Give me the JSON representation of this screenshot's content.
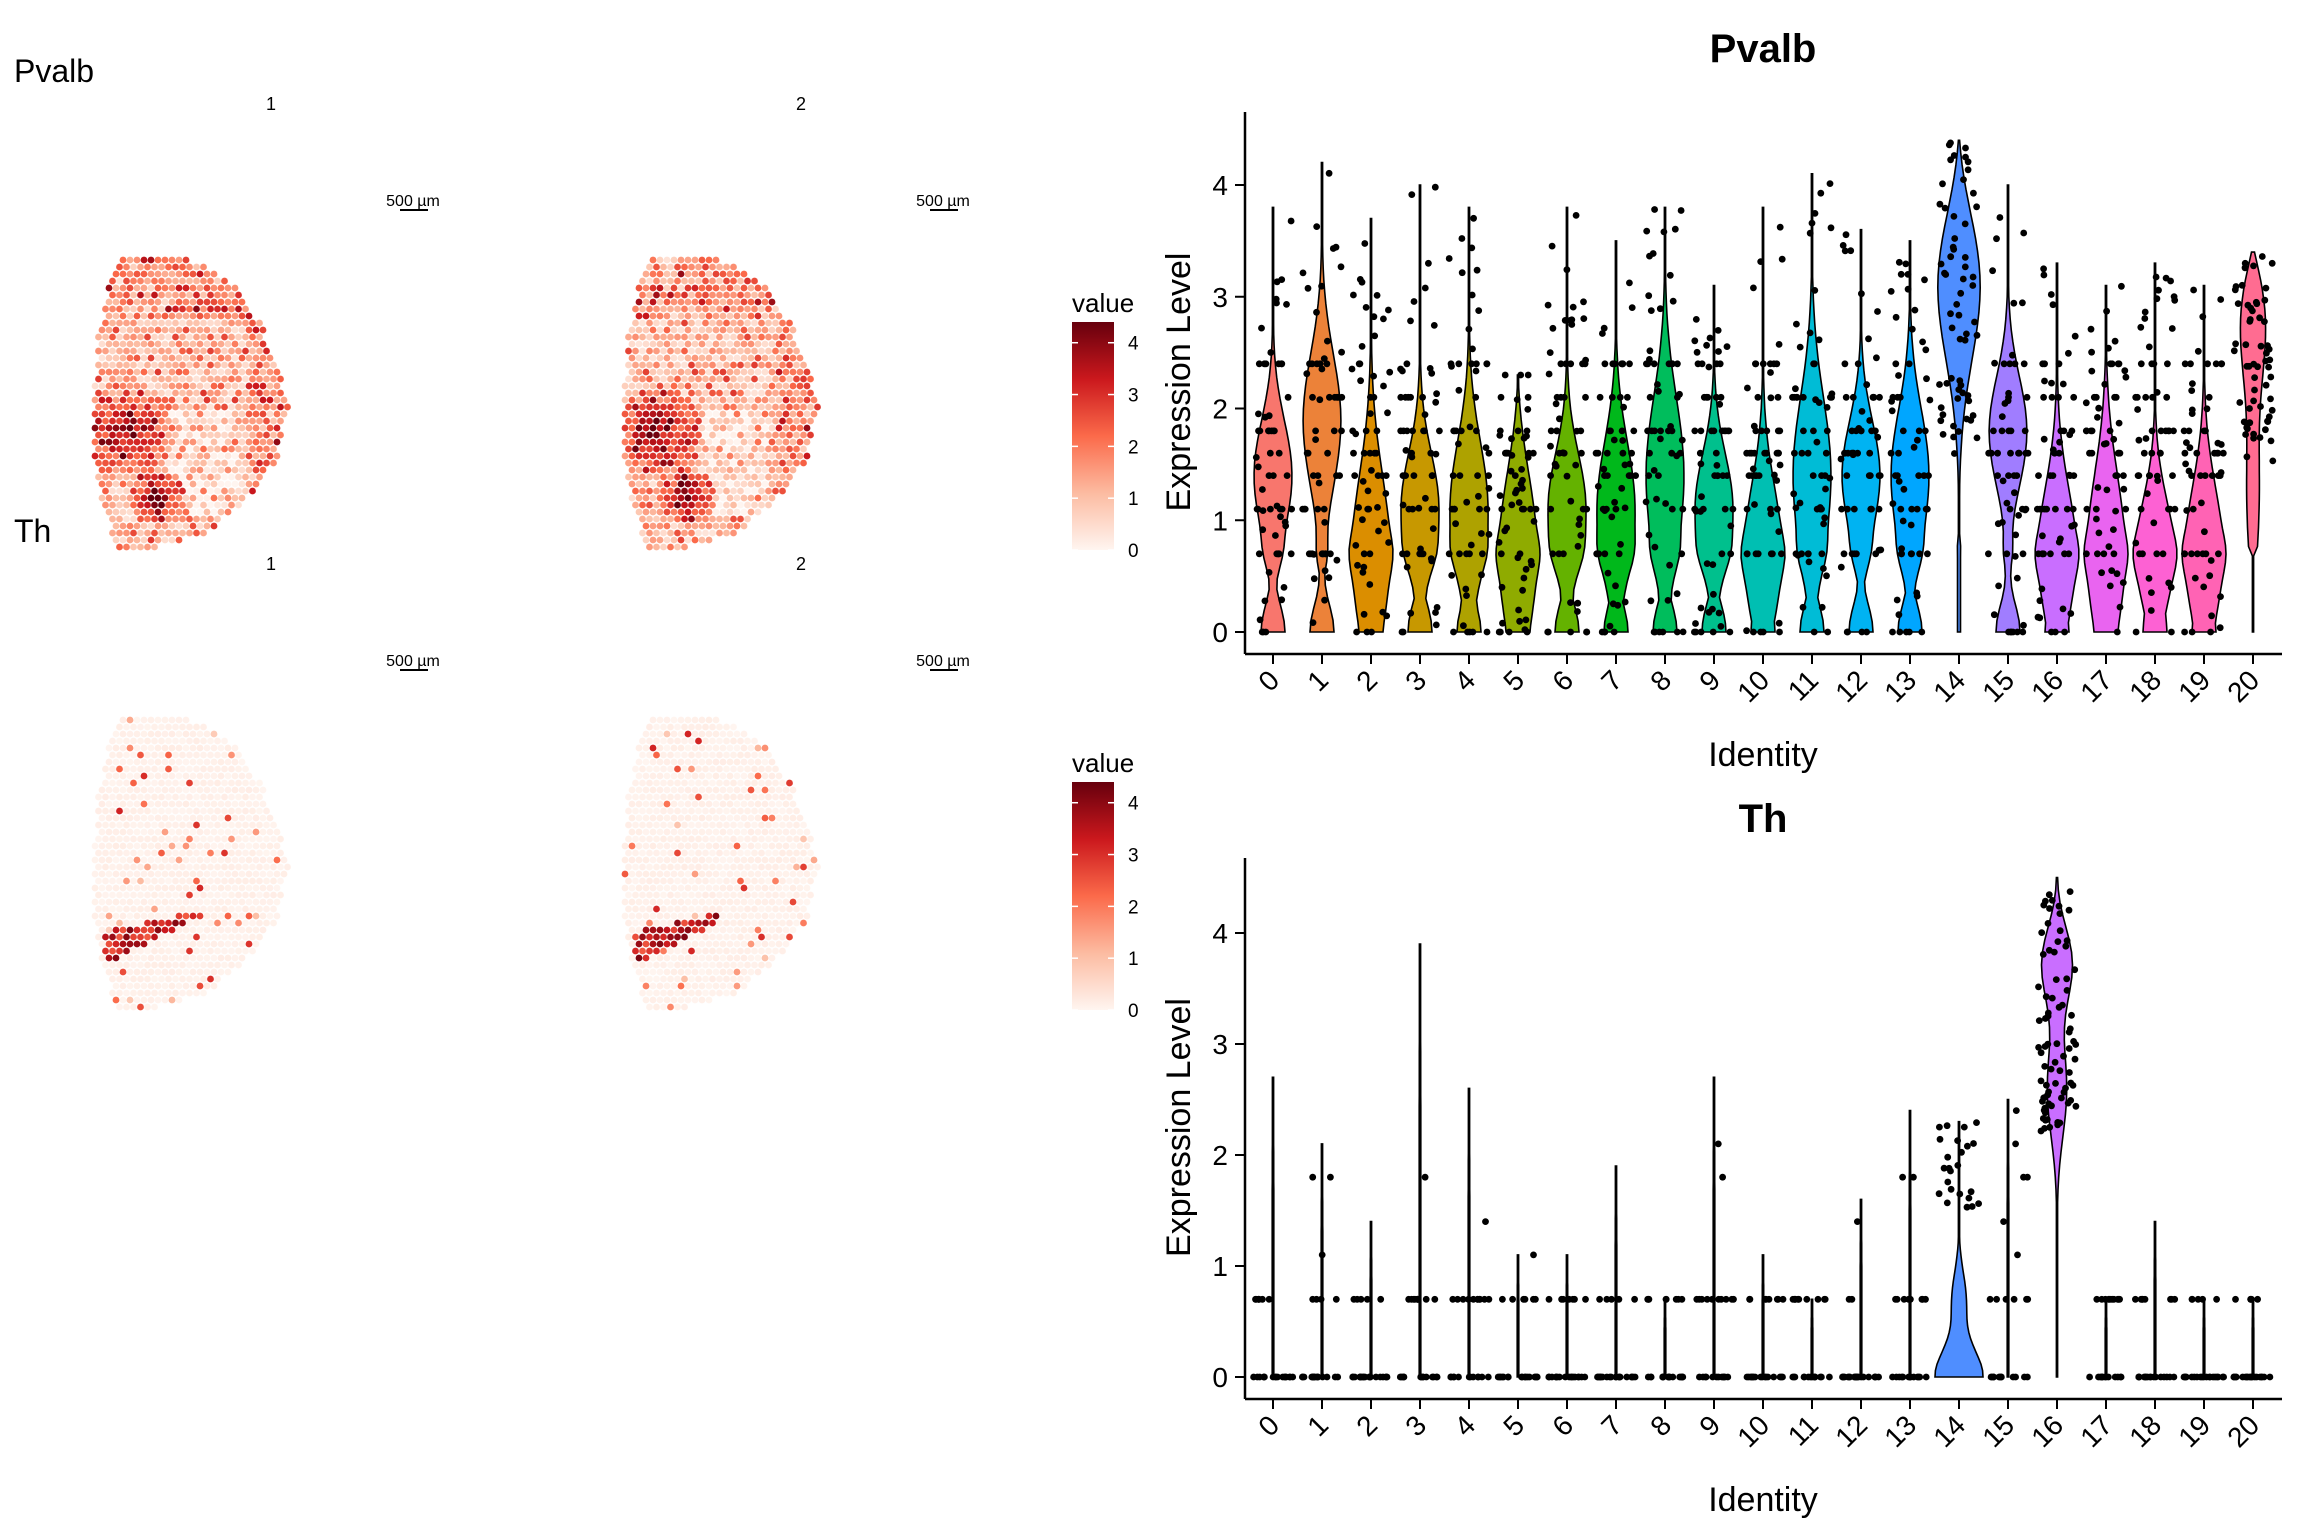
{
  "chart_data": {
    "type": "violin+spatial",
    "panels": [
      {
        "gene": "Pvalb",
        "spatial": {
          "samples": [
            "1",
            "2"
          ],
          "scale_bar_label": "500 µm",
          "legend_title": "value",
          "legend_ticks": [
            "0",
            "1",
            "2",
            "3",
            "4"
          ],
          "color_low": "#fff5f0",
          "color_high": "#67000d",
          "value_range": [
            0,
            4.4
          ]
        },
        "violin": {
          "title": "Pvalb",
          "xlabel": "Identity",
          "ylabel": "Expression Level",
          "ylim": [
            0,
            4.6
          ],
          "yticks": [
            "0",
            "1",
            "2",
            "3",
            "4"
          ],
          "categories": [
            "0",
            "1",
            "2",
            "3",
            "4",
            "5",
            "6",
            "7",
            "8",
            "9",
            "10",
            "11",
            "12",
            "13",
            "14",
            "15",
            "16",
            "17",
            "18",
            "19",
            "20"
          ],
          "max": [
            3.8,
            4.2,
            3.7,
            4.0,
            3.8,
            2.3,
            3.8,
            3.5,
            3.8,
            3.1,
            3.8,
            4.1,
            3.6,
            3.5,
            4.4,
            4.0,
            3.3,
            3.1,
            3.3,
            3.1,
            3.4
          ],
          "median": [
            1.4,
            1.9,
            0.7,
            1.1,
            1.1,
            0.7,
            1.1,
            1.1,
            1.4,
            1.1,
            0.7,
            1.4,
            1.4,
            1.4,
            3.2,
            1.8,
            0.7,
            0.7,
            0.7,
            0.7,
            2.3
          ]
        }
      },
      {
        "gene": "Th",
        "spatial": {
          "samples": [
            "1",
            "2"
          ],
          "scale_bar_label": "500 µm",
          "legend_title": "value",
          "legend_ticks": [
            "0",
            "1",
            "2",
            "3",
            "4"
          ],
          "color_low": "#fff5f0",
          "color_high": "#67000d",
          "value_range": [
            0,
            4.4
          ]
        },
        "violin": {
          "title": "Th",
          "xlabel": "Identity",
          "ylabel": "Expression Level",
          "ylim": [
            0,
            4.6
          ],
          "yticks": [
            "0",
            "1",
            "2",
            "3",
            "4"
          ],
          "categories": [
            "0",
            "1",
            "2",
            "3",
            "4",
            "5",
            "6",
            "7",
            "8",
            "9",
            "10",
            "11",
            "12",
            "13",
            "14",
            "15",
            "16",
            "17",
            "18",
            "19",
            "20"
          ],
          "max": [
            2.7,
            2.1,
            1.4,
            3.9,
            2.6,
            1.1,
            1.1,
            1.9,
            0.7,
            2.7,
            1.1,
            0.7,
            1.6,
            2.4,
            2.3,
            2.5,
            4.5,
            0.7,
            1.4,
            0.7,
            0.7
          ],
          "median": [
            0,
            0,
            0,
            0,
            0,
            0,
            0,
            0,
            0,
            0,
            0,
            0,
            0,
            0,
            0,
            0,
            3.5,
            0,
            0,
            0,
            0
          ]
        }
      }
    ]
  },
  "colors": {
    "cluster_palette": [
      "#f8766d",
      "#ec8239",
      "#db8e00",
      "#c79800",
      "#aea200",
      "#8fab00",
      "#64b200",
      "#00b81b",
      "#00bd5c",
      "#00c08d",
      "#00bfb2",
      "#00bcd6",
      "#00b3f2",
      "#00a6ff",
      "#4f8eff",
      "#a07dff",
      "#c96eff",
      "#e964f0",
      "#fd61d3",
      "#ff63b4",
      "#ff6c91"
    ]
  }
}
